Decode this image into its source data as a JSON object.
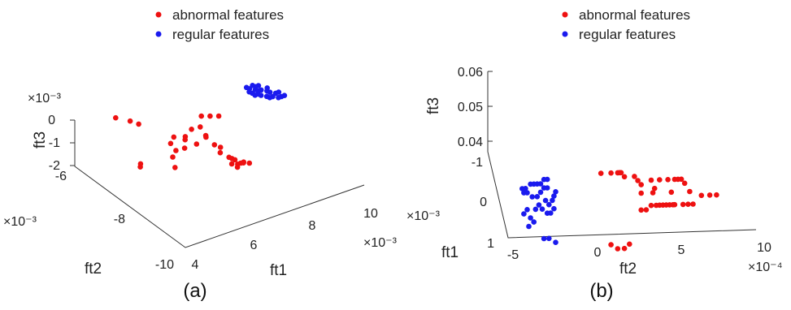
{
  "chart_data": [
    {
      "type": "scatter",
      "panel_label": "(a)",
      "axes": {
        "x": {
          "label": "ft1",
          "ticks": [
            "4",
            "6",
            "8",
            "10"
          ],
          "exponent": "×10⁻³",
          "range": [
            4,
            10
          ]
        },
        "y": {
          "label": "ft2",
          "ticks": [
            "-10",
            "-8",
            "-6"
          ],
          "exponent": "×10⁻³",
          "range": [
            -10,
            -6
          ]
        },
        "z": {
          "label": "ft3",
          "ticks": [
            "-2",
            "-1",
            "0"
          ],
          "exponent": "×10⁻³",
          "range": [
            -2,
            0
          ]
        }
      },
      "legend": {
        "placement": "top"
      },
      "series": [
        {
          "name": "abnormal features",
          "color": "#ee1111",
          "points": [
            [
              5.0,
              -6.4,
              0.0
            ],
            [
              5.3,
              -6.6,
              -0.1
            ],
            [
              5.4,
              -6.8,
              -0.1
            ],
            [
              4.9,
              -7.4,
              -1.2
            ],
            [
              5.0,
              -7.3,
              -1.2
            ],
            [
              5.8,
              -7.6,
              -1.0
            ],
            [
              6.0,
              -7.5,
              -0.9
            ],
            [
              6.2,
              -7.6,
              -0.8
            ],
            [
              6.4,
              -7.4,
              -0.7
            ],
            [
              6.1,
              -7.2,
              -0.9
            ],
            [
              6.3,
              -7.1,
              -0.8
            ],
            [
              6.5,
              -7.3,
              -0.7
            ],
            [
              6.6,
              -7.6,
              -0.8
            ],
            [
              6.8,
              -7.2,
              -0.6
            ],
            [
              7.0,
              -7.3,
              -0.5
            ],
            [
              7.0,
              -7.5,
              -0.7
            ],
            [
              7.1,
              -7.4,
              -0.9
            ],
            [
              7.2,
              -7.6,
              -1.1
            ],
            [
              7.4,
              -7.6,
              -1.3
            ],
            [
              7.3,
              -7.7,
              -1.4
            ],
            [
              7.5,
              -7.8,
              -1.6
            ],
            [
              7.6,
              -7.8,
              -1.7
            ],
            [
              7.7,
              -7.8,
              -1.8
            ],
            [
              7.8,
              -7.9,
              -1.9
            ],
            [
              7.9,
              -7.9,
              -1.9
            ],
            [
              8.0,
              -8.0,
              -1.9
            ],
            [
              7.6,
              -8.0,
              -1.9
            ],
            [
              7.5,
              -7.9,
              -1.8
            ],
            [
              7.7,
              -7.9,
              -1.9
            ],
            [
              7.8,
              -8.0,
              -1.8
            ],
            [
              7.5,
              -6.8,
              -0.7
            ],
            [
              7.7,
              -6.9,
              -0.7
            ],
            [
              7.9,
              -7.0,
              -0.7
            ],
            [
              5.6,
              -7.9,
              -1.1
            ]
          ]
        },
        {
          "name": "regular features",
          "color": "#1a1aee",
          "points": [
            [
              9.2,
              -6.6,
              -0.4
            ],
            [
              9.3,
              -6.6,
              -0.5
            ],
            [
              9.4,
              -6.7,
              -0.5
            ],
            [
              9.5,
              -6.7,
              -0.6
            ],
            [
              9.6,
              -6.7,
              -0.6
            ],
            [
              9.7,
              -6.8,
              -0.6
            ],
            [
              9.8,
              -6.8,
              -0.7
            ],
            [
              9.9,
              -6.9,
              -0.7
            ],
            [
              9.3,
              -6.7,
              -0.6
            ],
            [
              9.4,
              -6.8,
              -0.6
            ],
            [
              9.5,
              -6.8,
              -0.7
            ],
            [
              9.6,
              -6.9,
              -0.7
            ],
            [
              9.7,
              -6.9,
              -0.8
            ],
            [
              9.8,
              -6.9,
              -0.8
            ],
            [
              9.9,
              -7.0,
              -0.8
            ],
            [
              10.0,
              -7.0,
              -0.8
            ],
            [
              9.2,
              -6.7,
              -0.5
            ],
            [
              9.3,
              -6.8,
              -0.6
            ],
            [
              9.5,
              -6.6,
              -0.5
            ],
            [
              9.6,
              -6.6,
              -0.5
            ],
            [
              9.8,
              -6.7,
              -0.6
            ],
            [
              10.0,
              -6.9,
              -0.7
            ],
            [
              10.1,
              -7.0,
              -0.8
            ],
            [
              9.4,
              -6.6,
              -0.4
            ]
          ]
        }
      ]
    },
    {
      "type": "scatter",
      "panel_label": "(b)",
      "axes": {
        "x": {
          "label": "ft2",
          "ticks": [
            "-5",
            "0",
            "5",
            "10"
          ],
          "exponent": "×10⁻⁴",
          "range": [
            -5,
            10
          ]
        },
        "y": {
          "label": "ft1",
          "ticks": [
            "1",
            "0",
            "-1"
          ],
          "exponent": "×10⁻³",
          "range": [
            -1,
            1
          ]
        },
        "z": {
          "label": "ft3",
          "ticks": [
            "0.04",
            "0.05",
            "0.06"
          ],
          "range": [
            0.04,
            0.06
          ]
        }
      },
      "legend": {
        "placement": "top"
      },
      "series": [
        {
          "name": "abnormal features",
          "color": "#ee1111",
          "points": [
            [
              0.4,
              0.2,
              0.054
            ],
            [
              1.0,
              0.2,
              0.054
            ],
            [
              1.4,
              0.2,
              0.054
            ],
            [
              1.5,
              0.2,
              0.054
            ],
            [
              1.6,
              0.2,
              0.054
            ],
            [
              1.8,
              0.2,
              0.053
            ],
            [
              2.4,
              0.2,
              0.053
            ],
            [
              2.6,
              0.2,
              0.052
            ],
            [
              2.8,
              0.2,
              0.051
            ],
            [
              3.4,
              0.2,
              0.052
            ],
            [
              3.9,
              0.2,
              0.052
            ],
            [
              4.4,
              0.2,
              0.052
            ],
            [
              4.8,
              0.2,
              0.052
            ],
            [
              5.0,
              0.2,
              0.052
            ],
            [
              5.2,
              0.2,
              0.052
            ],
            [
              5.4,
              0.2,
              0.051
            ],
            [
              2.8,
              0.2,
              0.049
            ],
            [
              3.5,
              0.2,
              0.049
            ],
            [
              3.6,
              0.2,
              0.05
            ],
            [
              4.6,
              0.2,
              0.049
            ],
            [
              5.7,
              0.2,
              0.049
            ],
            [
              6.4,
              0.2,
              0.048
            ],
            [
              6.9,
              0.2,
              0.048
            ],
            [
              7.3,
              0.2,
              0.048
            ],
            [
              2.8,
              0.2,
              0.045
            ],
            [
              3.1,
              0.2,
              0.045
            ],
            [
              3.4,
              0.2,
              0.046
            ],
            [
              3.7,
              0.2,
              0.046
            ],
            [
              3.9,
              0.2,
              0.046
            ],
            [
              4.1,
              0.2,
              0.046
            ],
            [
              4.3,
              0.2,
              0.046
            ],
            [
              4.5,
              0.2,
              0.046
            ],
            [
              4.7,
              0.2,
              0.046
            ],
            [
              4.8,
              0.2,
              0.046
            ],
            [
              5.3,
              0.2,
              0.046
            ],
            [
              5.6,
              0.2,
              0.046
            ],
            [
              5.9,
              0.2,
              0.046
            ],
            [
              1.0,
              0.2,
              0.037
            ],
            [
              1.4,
              0.2,
              0.036
            ],
            [
              1.8,
              0.2,
              0.036
            ],
            [
              2.1,
              0.2,
              0.037
            ]
          ]
        },
        {
          "name": "regular features",
          "color": "#1a1aee",
          "points": [
            [
              -4.5,
              -0.2,
              0.051
            ],
            [
              -4.3,
              -0.2,
              0.051
            ],
            [
              -4.0,
              -0.2,
              0.052
            ],
            [
              -3.8,
              -0.2,
              0.052
            ],
            [
              -3.6,
              -0.2,
              0.052
            ],
            [
              -3.4,
              -0.2,
              0.052
            ],
            [
              -3.2,
              -0.2,
              0.053
            ],
            [
              -3.0,
              -0.2,
              0.053
            ],
            [
              -4.4,
              -0.2,
              0.05
            ],
            [
              -4.2,
              -0.2,
              0.05
            ],
            [
              -3.9,
              -0.2,
              0.049
            ],
            [
              -3.6,
              -0.2,
              0.049
            ],
            [
              -3.4,
              -0.2,
              0.05
            ],
            [
              -3.2,
              -0.2,
              0.051
            ],
            [
              -3.0,
              -0.2,
              0.051
            ],
            [
              -3.1,
              -0.2,
              0.048
            ],
            [
              -3.5,
              -0.2,
              0.047
            ],
            [
              -3.7,
              -0.2,
              0.046
            ],
            [
              -3.3,
              -0.2,
              0.046
            ],
            [
              -3.0,
              -0.2,
              0.045
            ],
            [
              -2.8,
              -0.2,
              0.045
            ],
            [
              -2.6,
              -0.2,
              0.046
            ],
            [
              -4.2,
              -0.2,
              0.046
            ],
            [
              -4.4,
              -0.2,
              0.045
            ],
            [
              -4.0,
              -0.2,
              0.044
            ],
            [
              -3.8,
              -0.2,
              0.043
            ],
            [
              -4.1,
              -0.2,
              0.042
            ],
            [
              -2.9,
              -0.2,
              0.047
            ],
            [
              -2.7,
              -0.2,
              0.048
            ],
            [
              -2.6,
              -0.2,
              0.049
            ],
            [
              -2.5,
              -0.2,
              0.05
            ],
            [
              -3.2,
              -0.2,
              0.039
            ],
            [
              -2.9,
              -0.2,
              0.039
            ],
            [
              -2.5,
              -0.2,
              0.038
            ]
          ]
        }
      ]
    }
  ]
}
